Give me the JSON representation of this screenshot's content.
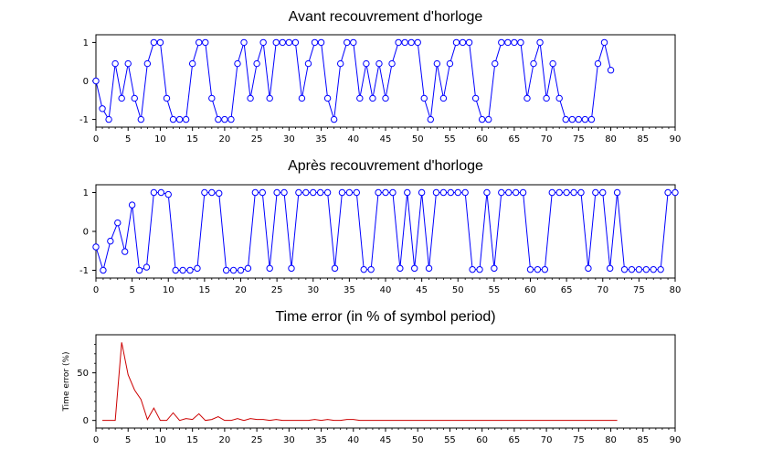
{
  "figure": {
    "background": "#ffffff",
    "marker_color": "#0000ff",
    "line_color_timeerror": "#cc0000"
  },
  "chart_data": [
    {
      "id": "avant",
      "type": "line",
      "title": "Avant recouvrement d'horloge",
      "xlabel": "",
      "ylabel": "",
      "xlim": [
        0,
        90
      ],
      "ylim": [
        -1.2,
        1.2
      ],
      "xticks": [
        0,
        5,
        10,
        15,
        20,
        25,
        30,
        35,
        40,
        45,
        50,
        55,
        60,
        65,
        70,
        75,
        80,
        85,
        90
      ],
      "yticks": [
        -1,
        0,
        1
      ],
      "markers": "circle",
      "color": "#0000ff",
      "series": [
        {
          "name": "",
          "values": [
            0,
            -0.72,
            -1,
            0.45,
            -0.45,
            0.45,
            -0.45,
            -1,
            0.45,
            1,
            1,
            -0.45,
            -1,
            -1,
            -1,
            0.45,
            1,
            1,
            -0.45,
            -1,
            -1,
            -1,
            0.45,
            1,
            -0.45,
            0.45,
            1,
            -0.45,
            1,
            1,
            1,
            1,
            -0.45,
            0.45,
            1,
            1,
            -0.45,
            -1,
            0.45,
            1,
            1,
            -0.45,
            0.45,
            -0.45,
            0.45,
            -0.45,
            0.45,
            1,
            1,
            1,
            1,
            -0.45,
            -1,
            0.45,
            -0.45,
            0.45,
            1,
            1,
            1,
            -0.45,
            -1,
            -1,
            0.45,
            1,
            1,
            1,
            1,
            -0.45,
            0.45,
            1,
            -0.45,
            0.45,
            -0.45,
            -1,
            -1,
            -1,
            -1,
            -1,
            0.45,
            1,
            0.28
          ]
        }
      ]
    },
    {
      "id": "apres",
      "type": "line",
      "title": "Après recouvrement d'horloge",
      "xlabel": "",
      "ylabel": "",
      "xlim": [
        0,
        80
      ],
      "ylim": [
        -1.2,
        1.2
      ],
      "xticks": [
        0,
        5,
        10,
        15,
        20,
        25,
        30,
        35,
        40,
        45,
        50,
        55,
        60,
        65,
        70,
        75,
        80
      ],
      "yticks": [
        -1,
        0,
        1
      ],
      "markers": "circle",
      "color": "#0000ff",
      "series": [
        {
          "name": "",
          "values": [
            -0.4,
            -1,
            -0.25,
            0.22,
            -0.52,
            0.68,
            -1,
            -0.92,
            1,
            1,
            0.95,
            -1,
            -1,
            -1,
            -0.95,
            1,
            1,
            0.98,
            -1,
            -1,
            -1,
            -0.95,
            1,
            1,
            -0.95,
            1,
            1,
            -0.95,
            1,
            1,
            1,
            1,
            1,
            -0.95,
            1,
            1,
            1,
            -0.98,
            -0.98,
            1,
            1,
            1,
            -0.95,
            1,
            -0.95,
            1,
            -0.95,
            1,
            1,
            1,
            1,
            1,
            -0.98,
            -0.98,
            1,
            -0.95,
            1,
            1,
            1,
            1,
            -0.98,
            -0.98,
            -0.98,
            1,
            1,
            1,
            1,
            1,
            -0.95,
            1,
            1,
            -0.95,
            1,
            -0.98,
            -0.98,
            -0.98,
            -0.98,
            -0.98,
            -0.98,
            1,
            1
          ]
        }
      ]
    },
    {
      "id": "timeerror",
      "type": "line",
      "title": "Time error (in % of symbol period)",
      "xlabel": "",
      "ylabel": "Time error (%)",
      "xlim": [
        0,
        90
      ],
      "ylim": [
        -8,
        90
      ],
      "xticks": [
        0,
        5,
        10,
        15,
        20,
        25,
        30,
        35,
        40,
        45,
        50,
        55,
        60,
        65,
        70,
        75,
        80,
        85,
        90
      ],
      "yticks": [
        0,
        50
      ],
      "markers": "none",
      "color": "#cc0000",
      "series": [
        {
          "name": "",
          "x": [
            1,
            2,
            3,
            4,
            5,
            6,
            7,
            8,
            9,
            10,
            11,
            12,
            13,
            14,
            15,
            16,
            17,
            18,
            19,
            20,
            21,
            22,
            23,
            24,
            25,
            26,
            27,
            28,
            29,
            30,
            31,
            32,
            33,
            34,
            35,
            36,
            37,
            38,
            39,
            40,
            41,
            81
          ],
          "values": [
            0,
            0,
            0,
            82,
            48,
            32,
            22,
            1,
            13,
            0,
            0,
            8,
            0,
            2,
            1,
            7,
            0,
            1,
            4,
            0,
            0,
            2,
            0,
            2,
            1,
            1,
            0,
            1,
            0,
            0,
            0,
            0,
            0,
            1,
            0,
            1,
            0,
            0,
            1,
            1,
            0,
            0
          ]
        }
      ]
    }
  ]
}
